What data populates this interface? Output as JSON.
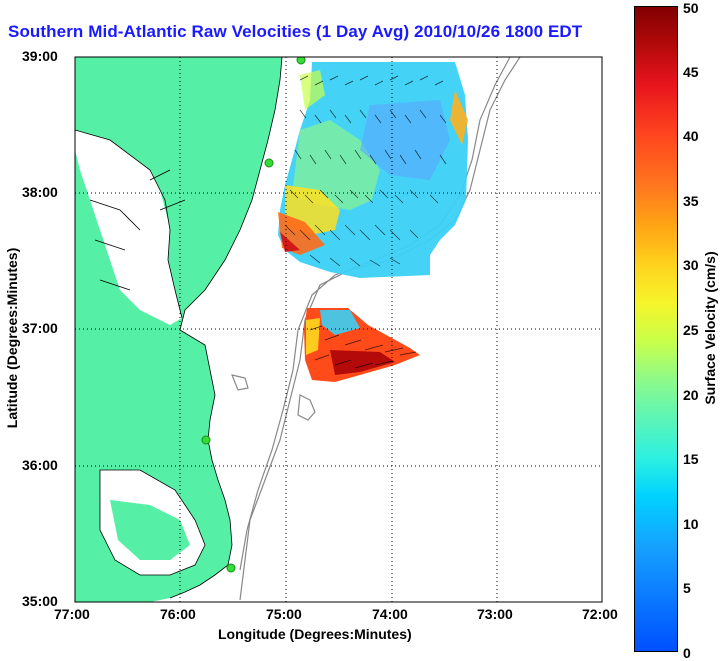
{
  "title": "Southern Mid-Atlantic Raw Velocities (1 Day Avg) 2010/10/26 1800 EDT",
  "axes": {
    "xlabel": "Longitude (Degrees:Minutes)",
    "ylabel": "Latitude (Degrees:Minutes)",
    "xticks": [
      "77:00",
      "76:00",
      "75:00",
      "74:00",
      "73:00",
      "72:00"
    ],
    "yticks": [
      "39:00",
      "38:00",
      "37:00",
      "36:00",
      "35:00"
    ]
  },
  "colorbar": {
    "label": "Surface Velocity (cm/s)",
    "ticks": [
      "0",
      "5",
      "10",
      "15",
      "20",
      "25",
      "30",
      "35",
      "40",
      "45",
      "50"
    ]
  },
  "colors": {
    "land": "#55f0a5",
    "water": "#ffffff",
    "title": "#1a1aff",
    "site_marker": "#33dd33",
    "bathymetry": "#888888"
  }
}
